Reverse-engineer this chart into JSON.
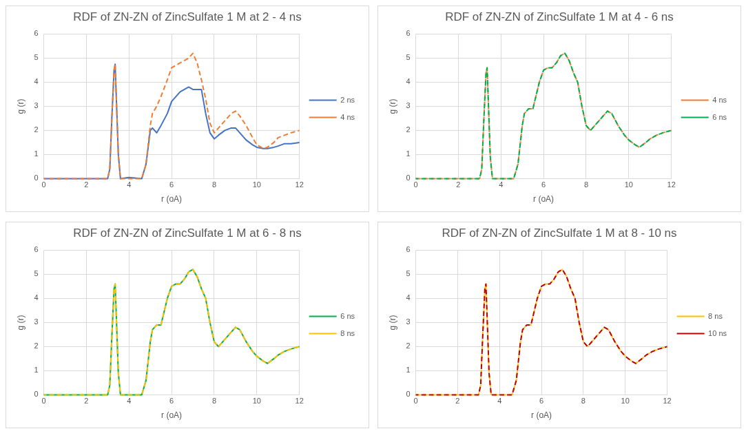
{
  "chart_data": [
    {
      "type": "line",
      "title": "RDF of ZN-ZN of ZincSulfate 1 M at 2 - 4 ns",
      "xlabel": "r (oA)",
      "ylabel": "g (r)",
      "xlim": [
        0,
        12
      ],
      "xticks": [
        0,
        2,
        4,
        6,
        8,
        10,
        12
      ],
      "ylim": [
        0,
        6
      ],
      "yticks": [
        0,
        1,
        2,
        3,
        4,
        5,
        6
      ],
      "grid": true,
      "legend": "right",
      "x": [
        0,
        3.0,
        3.1,
        3.2,
        3.3,
        3.35,
        3.4,
        3.5,
        3.6,
        4.0,
        4.6,
        4.8,
        5.0,
        5.1,
        5.3,
        5.5,
        5.8,
        6.0,
        6.2,
        6.4,
        6.6,
        6.8,
        7.0,
        7.2,
        7.4,
        7.6,
        7.8,
        8.0,
        8.2,
        8.5,
        8.8,
        9.0,
        9.2,
        9.5,
        9.8,
        10.0,
        10.3,
        10.5,
        10.8,
        11.0,
        11.3,
        11.6,
        12.0
      ],
      "series": [
        {
          "name": "2 ns",
          "color": "#4472c4",
          "line_style": "solid",
          "values": [
            0,
            0,
            0.4,
            2.6,
            4.5,
            4.75,
            3.5,
            1.0,
            0,
            0.05,
            0,
            0.6,
            2.0,
            2.1,
            1.9,
            2.2,
            2.7,
            3.2,
            3.4,
            3.6,
            3.7,
            3.8,
            3.7,
            3.7,
            3.7,
            2.7,
            1.9,
            1.65,
            1.8,
            2.0,
            2.1,
            2.1,
            1.9,
            1.6,
            1.4,
            1.3,
            1.25,
            1.25,
            1.3,
            1.35,
            1.45,
            1.45,
            1.5
          ]
        },
        {
          "name": "4 ns",
          "color": "#ed7d31",
          "line_style": "dashed",
          "values": [
            0,
            0,
            0.4,
            2.6,
            4.5,
            4.75,
            3.5,
            1.0,
            0,
            0,
            0,
            0.6,
            2.2,
            2.7,
            3.0,
            3.4,
            4.1,
            4.6,
            4.7,
            4.8,
            4.9,
            5.0,
            5.2,
            4.8,
            4.1,
            3.3,
            2.3,
            1.9,
            2.1,
            2.4,
            2.7,
            2.8,
            2.6,
            2.2,
            1.7,
            1.4,
            1.25,
            1.3,
            1.5,
            1.7,
            1.8,
            1.9,
            2.0
          ]
        }
      ]
    },
    {
      "type": "line",
      "title": "RDF of ZN-ZN of ZincSulfate 1 M at 4 - 6 ns",
      "xlabel": "r (oA)",
      "ylabel": "g (r)",
      "xlim": [
        0,
        12
      ],
      "xticks": [
        0,
        2,
        4,
        6,
        8,
        10,
        12
      ],
      "ylim": [
        0,
        6
      ],
      "yticks": [
        0,
        1,
        2,
        3,
        4,
        5,
        6
      ],
      "grid": true,
      "legend": "right",
      "x": [
        0,
        3.0,
        3.1,
        3.2,
        3.3,
        3.35,
        3.4,
        3.5,
        3.6,
        4.0,
        4.6,
        4.8,
        5.0,
        5.1,
        5.3,
        5.5,
        5.8,
        6.0,
        6.2,
        6.4,
        6.6,
        6.8,
        7.0,
        7.2,
        7.4,
        7.6,
        7.8,
        8.0,
        8.2,
        8.5,
        8.8,
        9.0,
        9.2,
        9.5,
        9.8,
        10.0,
        10.3,
        10.5,
        10.8,
        11.0,
        11.3,
        11.6,
        12.0
      ],
      "series": [
        {
          "name": "4 ns",
          "color": "#ed7d31",
          "line_style": "dashed",
          "values": [
            0,
            0,
            0.4,
            2.5,
            4.4,
            4.6,
            3.4,
            0.9,
            0,
            0,
            0,
            0.6,
            2.2,
            2.7,
            2.9,
            2.9,
            4.0,
            4.5,
            4.6,
            4.6,
            4.8,
            5.1,
            5.2,
            4.9,
            4.4,
            4.0,
            3.0,
            2.2,
            2.0,
            2.3,
            2.6,
            2.8,
            2.7,
            2.2,
            1.8,
            1.6,
            1.4,
            1.3,
            1.5,
            1.65,
            1.8,
            1.9,
            2.0
          ]
        },
        {
          "name": "6 ns",
          "color": "#00b050",
          "line_style": "dashed",
          "values": [
            0,
            0,
            0.4,
            2.5,
            4.4,
            4.6,
            3.4,
            0.9,
            0,
            0,
            0,
            0.6,
            2.2,
            2.7,
            2.9,
            2.9,
            4.0,
            4.5,
            4.6,
            4.6,
            4.8,
            5.1,
            5.2,
            4.9,
            4.4,
            4.0,
            3.0,
            2.2,
            2.0,
            2.3,
            2.6,
            2.8,
            2.7,
            2.2,
            1.8,
            1.6,
            1.4,
            1.3,
            1.5,
            1.65,
            1.8,
            1.9,
            2.0
          ]
        }
      ]
    },
    {
      "type": "line",
      "title": "RDF of ZN-ZN of ZincSulfate 1 M at 6 - 8 ns",
      "xlabel": "r (oA)",
      "ylabel": "g (r)",
      "xlim": [
        0,
        12
      ],
      "xticks": [
        0,
        2,
        4,
        6,
        8,
        10,
        12
      ],
      "ylim": [
        0,
        6
      ],
      "yticks": [
        0,
        1,
        2,
        3,
        4,
        5,
        6
      ],
      "grid": true,
      "legend": "right",
      "x": [
        0,
        3.0,
        3.1,
        3.2,
        3.3,
        3.35,
        3.4,
        3.5,
        3.6,
        4.0,
        4.6,
        4.8,
        5.0,
        5.1,
        5.3,
        5.5,
        5.8,
        6.0,
        6.2,
        6.4,
        6.6,
        6.8,
        7.0,
        7.2,
        7.4,
        7.6,
        7.8,
        8.0,
        8.2,
        8.5,
        8.8,
        9.0,
        9.2,
        9.5,
        9.8,
        10.0,
        10.3,
        10.5,
        10.8,
        11.0,
        11.3,
        11.6,
        12.0
      ],
      "series": [
        {
          "name": "6 ns",
          "color": "#00b050",
          "line_style": "solid",
          "values": [
            0,
            0,
            0.4,
            2.5,
            4.4,
            4.6,
            3.4,
            0.9,
            0,
            0,
            0,
            0.6,
            2.2,
            2.7,
            2.9,
            2.9,
            4.0,
            4.5,
            4.6,
            4.6,
            4.8,
            5.1,
            5.2,
            4.9,
            4.4,
            4.0,
            3.0,
            2.2,
            2.0,
            2.3,
            2.6,
            2.8,
            2.7,
            2.2,
            1.8,
            1.6,
            1.4,
            1.3,
            1.5,
            1.65,
            1.8,
            1.9,
            2.0
          ]
        },
        {
          "name": "8 ns",
          "color": "#ffc000",
          "line_style": "dashed",
          "values": [
            0,
            0,
            0.4,
            2.5,
            4.4,
            4.6,
            3.4,
            0.9,
            0,
            0,
            0,
            0.6,
            2.2,
            2.7,
            2.9,
            2.9,
            4.0,
            4.5,
            4.6,
            4.6,
            4.8,
            5.1,
            5.2,
            4.9,
            4.4,
            4.0,
            3.0,
            2.2,
            2.0,
            2.3,
            2.6,
            2.8,
            2.7,
            2.2,
            1.8,
            1.6,
            1.4,
            1.3,
            1.5,
            1.65,
            1.8,
            1.9,
            2.0
          ]
        }
      ]
    },
    {
      "type": "line",
      "title": "RDF of ZN-ZN of ZincSulfate 1 M at 8 - 10 ns",
      "xlabel": "r (oA)",
      "ylabel": "g (r)",
      "xlim": [
        0,
        12
      ],
      "xticks": [
        0,
        2,
        4,
        6,
        8,
        10,
        12
      ],
      "ylim": [
        0,
        6
      ],
      "yticks": [
        0,
        1,
        2,
        3,
        4,
        5,
        6
      ],
      "grid": true,
      "legend": "right",
      "x": [
        0,
        3.0,
        3.1,
        3.2,
        3.3,
        3.35,
        3.4,
        3.5,
        3.6,
        4.0,
        4.6,
        4.8,
        5.0,
        5.1,
        5.3,
        5.5,
        5.8,
        6.0,
        6.2,
        6.4,
        6.6,
        6.8,
        7.0,
        7.2,
        7.4,
        7.6,
        7.8,
        8.0,
        8.2,
        8.5,
        8.8,
        9.0,
        9.2,
        9.5,
        9.8,
        10.0,
        10.3,
        10.5,
        10.8,
        11.0,
        11.3,
        11.6,
        12.0
      ],
      "series": [
        {
          "name": "8 ns",
          "color": "#ffc000",
          "line_style": "dashed",
          "values": [
            0,
            0,
            0.4,
            2.5,
            4.4,
            4.6,
            3.4,
            0.9,
            0,
            0,
            0,
            0.6,
            2.2,
            2.7,
            2.9,
            2.9,
            4.0,
            4.5,
            4.6,
            4.6,
            4.8,
            5.1,
            5.2,
            4.9,
            4.4,
            4.0,
            3.0,
            2.2,
            2.0,
            2.3,
            2.6,
            2.8,
            2.7,
            2.2,
            1.8,
            1.6,
            1.4,
            1.3,
            1.5,
            1.65,
            1.8,
            1.9,
            2.0
          ]
        },
        {
          "name": "10 ns",
          "color": "#c00000",
          "line_style": "dashed",
          "values": [
            0,
            0,
            0.4,
            2.5,
            4.4,
            4.6,
            3.4,
            0.9,
            0,
            0,
            0,
            0.6,
            2.2,
            2.7,
            2.9,
            2.9,
            4.0,
            4.5,
            4.6,
            4.6,
            4.8,
            5.1,
            5.2,
            4.9,
            4.4,
            4.0,
            3.0,
            2.2,
            2.0,
            2.3,
            2.6,
            2.8,
            2.7,
            2.2,
            1.8,
            1.6,
            1.4,
            1.3,
            1.5,
            1.65,
            1.8,
            1.9,
            2.0
          ]
        }
      ]
    }
  ]
}
